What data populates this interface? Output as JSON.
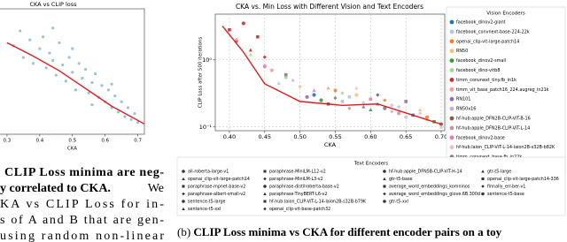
{
  "chart_data": [
    {
      "type": "scatter",
      "title": "CKA vs CLIP loss",
      "xlabel": "CKA",
      "xlim": [
        0.2,
        0.72
      ],
      "ylim": [
        0,
        0.85
      ],
      "xticks": [
        0.3,
        0.4,
        0.5,
        0.6,
        0.7
      ],
      "series": [
        {
          "color": "#1f77b4",
          "x": [
            0.32,
            0.34,
            0.35,
            0.37,
            0.38,
            0.4,
            0.41,
            0.42,
            0.43,
            0.44,
            0.45,
            0.46,
            0.47,
            0.48,
            0.49,
            0.5,
            0.51,
            0.52,
            0.53,
            0.54,
            0.55,
            0.56,
            0.57,
            0.58,
            0.59,
            0.6,
            0.61,
            0.62,
            0.63,
            0.64,
            0.65,
            0.66,
            0.67,
            0.68,
            0.69,
            0.7,
            0.44,
            0.5,
            0.56,
            0.62
          ],
          "values": [
            0.6,
            0.7,
            0.52,
            0.64,
            0.48,
            0.58,
            0.66,
            0.45,
            0.55,
            0.5,
            0.4,
            0.62,
            0.47,
            0.36,
            0.52,
            0.42,
            0.3,
            0.48,
            0.38,
            0.44,
            0.28,
            0.35,
            0.41,
            0.25,
            0.33,
            0.22,
            0.3,
            0.18,
            0.26,
            0.15,
            0.22,
            0.12,
            0.18,
            0.1,
            0.14,
            0.08,
            0.72,
            0.58,
            0.2,
            0.34
          ]
        },
        {
          "color": "#e31a1c",
          "line": true,
          "x": [
            0.3,
            0.38,
            0.46,
            0.54,
            0.62,
            0.72
          ],
          "values": [
            0.62,
            0.53,
            0.43,
            0.31,
            0.19,
            0.07
          ]
        }
      ]
    },
    {
      "type": "scatter",
      "title": "CKA vs. Min Loss with Different Vision and Text Encoders",
      "xlabel": "CKA",
      "ylabel": "CLIP Loss after 500 iterations",
      "yscale": "log",
      "grid": true,
      "xlim": [
        0.38,
        0.705
      ],
      "ylim": [
        0.088,
        4.8
      ],
      "xticks": [
        {
          "value": 0.4,
          "label": "0.40"
        },
        0.45,
        {
          "value": 0.5,
          "label": "0.50"
        },
        0.55,
        {
          "value": 0.6,
          "label": "0.60"
        },
        0.65,
        {
          "value": 0.7,
          "label": "0.70"
        }
      ],
      "yticks": [
        {
          "value": 1,
          "label": "10⁰"
        },
        {
          "value": 0.1,
          "label": "10⁻¹"
        }
      ],
      "legend_title": "Vision Encoders",
      "series": [
        {
          "name": "facebook_dinov2-giant",
          "color": "#1f77b4",
          "x": [
            0.52,
            0.61,
            0.66
          ],
          "values": [
            0.3,
            0.22,
            0.15
          ]
        },
        {
          "name": "facebook_convnext-base-224-22k",
          "color": "#aec7e8",
          "x": [
            0.47,
            0.57,
            0.64
          ],
          "values": [
            0.45,
            0.28,
            0.2
          ]
        },
        {
          "name": "openai_clip-vit-large-patch14",
          "color": "#ff7f0e",
          "x": [
            0.55,
            0.62,
            0.68
          ],
          "values": [
            0.35,
            0.25,
            0.14
          ]
        },
        {
          "name": "RN50",
          "color": "#ffbb78",
          "x": [
            0.5,
            0.58,
            0.67
          ],
          "values": [
            0.4,
            0.3,
            0.18
          ]
        },
        {
          "name": "facebook_dinov2-small",
          "color": "#2ca02c",
          "x": [
            0.53,
            0.6,
            0.69
          ],
          "values": [
            0.25,
            0.18,
            0.12
          ]
        },
        {
          "name": "facebook_dino-vitb8",
          "color": "#98df8a",
          "x": [
            0.43,
            0.48,
            0.56
          ],
          "values": [
            1.2,
            0.55,
            0.32
          ]
        },
        {
          "name": "timm_convnext_tiny.fb_in1k",
          "color": "#d62728",
          "x": [
            0.4,
            0.41,
            0.42,
            0.43,
            0.44,
            0.45
          ],
          "values": [
            2.8,
            1.9,
            3.5,
            1.4,
            2.2,
            1.1
          ]
        },
        {
          "name": "timm_vit_base_patch16_224.augreg_in21k",
          "color": "#ff9896",
          "x": [
            0.41,
            0.46,
            0.54
          ],
          "values": [
            2.0,
            0.7,
            0.38
          ]
        },
        {
          "name": "RN101",
          "color": "#9467bd",
          "x": [
            0.51,
            0.59,
            0.65
          ],
          "values": [
            0.28,
            0.2,
            0.24
          ]
        },
        {
          "name": "RN50x16",
          "color": "#c5b0d5",
          "x": [
            0.49,
            0.56,
            0.63
          ],
          "values": [
            0.5,
            0.24,
            0.17
          ]
        },
        {
          "name": "hf-hub:apple_DFN2B-CLIP-ViT-B-16",
          "color": "#8c564b",
          "x": [
            0.54,
            0.61,
            0.7
          ],
          "values": [
            0.22,
            0.3,
            0.11
          ]
        },
        {
          "name": "hf-hub:apple_DFN2B-CLIP-ViT-L-14",
          "color": "#c49c94",
          "x": [
            0.57,
            0.64,
            0.68
          ],
          "values": [
            0.19,
            0.16,
            0.13
          ]
        },
        {
          "name": "facebook_dinov2-base",
          "color": "#e377c2",
          "x": [
            0.45,
            0.52,
            0.6
          ],
          "values": [
            0.8,
            0.35,
            0.26
          ]
        },
        {
          "name": "hf-hub:laion_CLIP-ViT-L-14-laion2B-s32B-b82K",
          "color": "#f7b6d2",
          "x": [
            0.58,
            0.63,
            0.67
          ],
          "values": [
            0.38,
            0.21,
            0.16
          ]
        },
        {
          "name": "timm_convnext_base.fb_in22k",
          "color": "#7f7f7f",
          "x": [
            0.48,
            0.55,
            0.62
          ],
          "values": [
            0.6,
            0.27,
            0.19
          ]
        },
        {
          "name": "RN50x64",
          "color": "#c7c7c7",
          "x": [
            0.59,
            0.65,
            0.7
          ],
          "values": [
            0.23,
            0.14,
            0.1
          ]
        },
        {
          "color": "#e31a1c",
          "line": true,
          "x": [
            0.39,
            0.42,
            0.45,
            0.5,
            0.56,
            0.61,
            0.66,
            0.7
          ],
          "values": [
            3.2,
            1.3,
            0.44,
            0.24,
            0.21,
            0.22,
            0.15,
            0.11
          ]
        }
      ],
      "marker_legend": {
        "title": "Text Encoders",
        "names": [
          "all-roberta-large-v1",
          "openai_clip-vit-large-patch14",
          "paraphrase-mpnet-base-v2",
          "paraphrase-albert-small-v2",
          "sentence-t5-large",
          "sentence-t5-xxl",
          "paraphrase-MiniLM-L12-v2",
          "paraphrase-MiniLM-L3-v2",
          "paraphrase-distilroberta-base-v2",
          "paraphrase-TinyBERT-L6-v2",
          "hf-hub:laion_CLIP-ViT-L-14-laion2B-s32B-b79K",
          "openai_clip-vit-base-patch32",
          "hf-hub:apple_DFN5B-CLIP-ViT-H-14",
          "gtr-t5-base",
          "average_word_embeddings_komninos",
          "average_word_embeddings_glove.6B.300d",
          "gtr-t5-xxl",
          "gtr-t5-large",
          "openai_clip-vit-large-patch14-336",
          "finnally_err-ber-v1",
          "sentence-t5-base"
        ]
      }
    }
  ],
  "body_text": {
    "bold": [
      "CLIP Loss minima are neg-",
      "y correlated to CKA."
    ],
    "plain": [
      "We",
      "KA vs CLIP Loss for in-",
      "s of A and B that are gen-",
      "using random non-linear"
    ]
  },
  "caption": {
    "label": "(b)",
    "text": "CLIP Loss minima vs CKA for different encoder pairs on a toy"
  }
}
